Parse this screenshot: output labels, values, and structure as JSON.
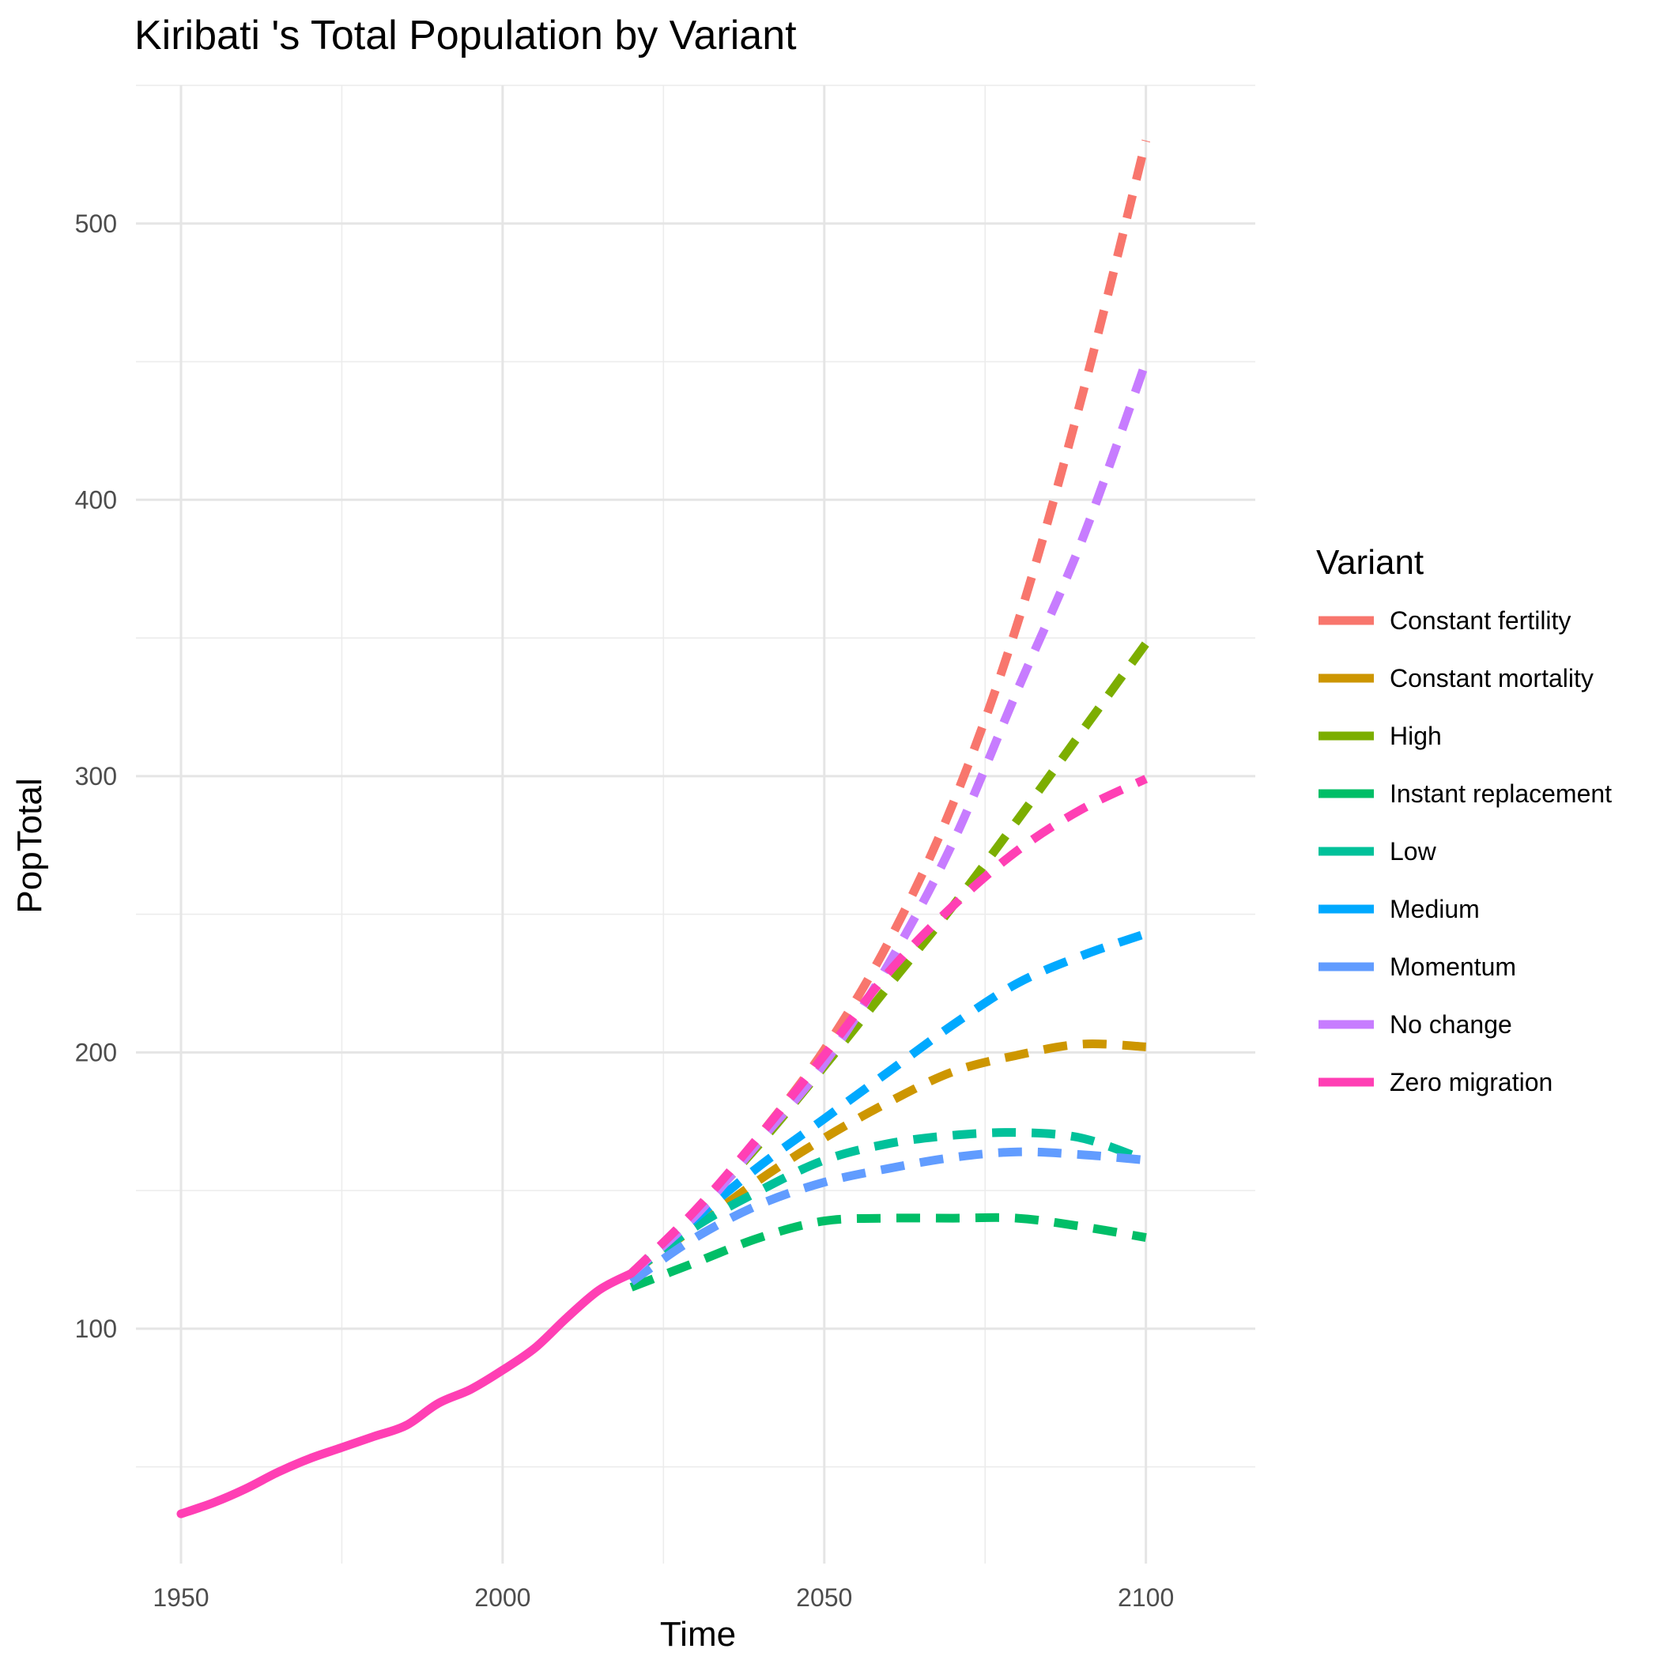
{
  "chart_data": {
    "type": "line",
    "title": "Kiribati 's Total Population by Variant",
    "xlabel": "Time",
    "ylabel": "PopTotal",
    "xlim": [
      1943,
      2117
    ],
    "ylim": [
      15,
      550
    ],
    "x_ticks": [
      1950,
      2000,
      2050,
      2100
    ],
    "y_ticks": [
      100,
      200,
      300,
      400,
      500
    ],
    "x_tick_labels": [
      "1950",
      "2000",
      "2050",
      "2100"
    ],
    "y_tick_labels": [
      "100",
      "200",
      "300",
      "400",
      "500"
    ],
    "grid": true,
    "legend_title": "Variant",
    "legend_position": "right",
    "historical": {
      "color": "#FF3FB4",
      "x": [
        1950,
        1955,
        1960,
        1965,
        1970,
        1975,
        1980,
        1985,
        1990,
        1995,
        2000,
        2005,
        2010,
        2015,
        2020
      ],
      "values": [
        33,
        37,
        42,
        48,
        53,
        57,
        61,
        65,
        73,
        78,
        85,
        93,
        104,
        114,
        120
      ]
    },
    "series": [
      {
        "name": "Constant fertility",
        "color": "#F8766D",
        "x": [
          2020,
          2030,
          2040,
          2050,
          2060,
          2070,
          2080,
          2090,
          2100
        ],
        "values": [
          120,
          142,
          170,
          201,
          240,
          290,
          355,
          437,
          530
        ]
      },
      {
        "name": "Constant mortality",
        "color": "#CD9600",
        "x": [
          2020,
          2030,
          2040,
          2050,
          2060,
          2070,
          2080,
          2090,
          2100
        ],
        "values": [
          120,
          137,
          154,
          169,
          182,
          193,
          199,
          203,
          202
        ]
      },
      {
        "name": "High",
        "color": "#7CAE00",
        "x": [
          2020,
          2030,
          2040,
          2050,
          2060,
          2070,
          2080,
          2090,
          2100
        ],
        "values": [
          120,
          142,
          167,
          195,
          224,
          253,
          284,
          316,
          348
        ]
      },
      {
        "name": "Instant replacement",
        "color": "#00BE67",
        "x": [
          2020,
          2030,
          2040,
          2050,
          2060,
          2070,
          2080,
          2090,
          2100
        ],
        "values": [
          115,
          124,
          133,
          139,
          140,
          140,
          140,
          137,
          133
        ]
      },
      {
        "name": "Low",
        "color": "#00C19A",
        "x": [
          2020,
          2030,
          2040,
          2050,
          2060,
          2070,
          2080,
          2090,
          2100
        ],
        "values": [
          120,
          137,
          150,
          161,
          167,
          170,
          171,
          169,
          161
        ]
      },
      {
        "name": "Medium",
        "color": "#00A9FF",
        "x": [
          2020,
          2030,
          2040,
          2050,
          2060,
          2070,
          2080,
          2090,
          2100
        ],
        "values": [
          120,
          140,
          159,
          176,
          193,
          210,
          225,
          235,
          243
        ]
      },
      {
        "name": "Momentum",
        "color": "#619CFF",
        "x": [
          2020,
          2030,
          2040,
          2050,
          2060,
          2070,
          2080,
          2090,
          2100
        ],
        "values": [
          117,
          133,
          145,
          153,
          158,
          162,
          164,
          163,
          161
        ]
      },
      {
        "name": "No change",
        "color": "#C77CFF",
        "x": [
          2020,
          2030,
          2040,
          2050,
          2060,
          2070,
          2080,
          2090,
          2100
        ],
        "values": [
          120,
          141,
          168,
          196,
          232,
          276,
          331,
          385,
          450
        ]
      },
      {
        "name": "Zero migration",
        "color": "#FF3FB4",
        "x": [
          2020,
          2030,
          2040,
          2050,
          2060,
          2070,
          2080,
          2090,
          2100
        ],
        "values": [
          120,
          143,
          170,
          199,
          229,
          253,
          273,
          288,
          299
        ]
      }
    ]
  }
}
